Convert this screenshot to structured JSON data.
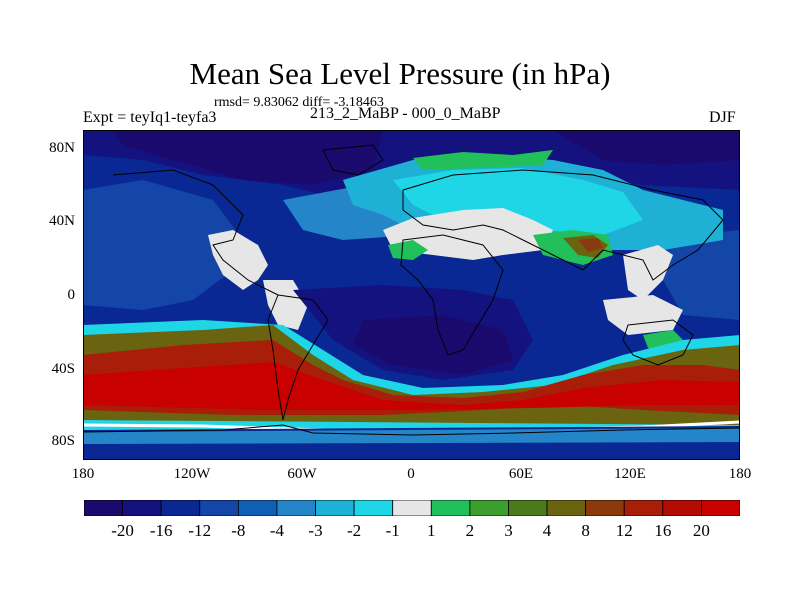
{
  "header": {
    "title": "Mean Sea Level Pressure (in hPa)",
    "stats": "rmsd= 9.83062  diff= -3.18463",
    "experiment": "Expt = teyIq1-teyfa3",
    "difference_name": "213_2_MaBP - 000_0_MaBP",
    "season": "DJF"
  },
  "axes": {
    "y_labels": [
      "80N",
      "40N",
      "0",
      "40S",
      "80S"
    ],
    "x_labels": [
      "180",
      "120W",
      "60W",
      "0",
      "60E",
      "120E",
      "180"
    ]
  },
  "colorbar": {
    "labels": [
      "-20",
      "-16",
      "-12",
      "-8",
      "-4",
      "-3",
      "-2",
      "-1",
      "1",
      "2",
      "3",
      "4",
      "8",
      "12",
      "16",
      "20"
    ],
    "colors": [
      "#1a0a6e",
      "#14127f",
      "#0a2894",
      "#1446a8",
      "#0f5fb5",
      "#2486c8",
      "#1fb0d6",
      "#1ed6e6",
      "#e6e6e6",
      "#22c05a",
      "#3c9e2c",
      "#4a7a1a",
      "#6a6410",
      "#8a3a0c",
      "#a81e08",
      "#b40c04",
      "#c80000"
    ]
  },
  "chart_data": {
    "type": "heatmap",
    "title": "Mean Sea Level Pressure (in hPa)",
    "variable": "Mean sea level pressure difference",
    "units": "hPa",
    "subtitle_left": "Expt = teyIq1-teyfa3",
    "subtitle_center": "213_2_MaBP - 000_0_MaBP",
    "subtitle_right": "DJF",
    "statistics": {
      "rmsd": 9.83062,
      "diff": -3.18463
    },
    "x_range": [
      -180,
      180
    ],
    "y_range": [
      -90,
      90
    ],
    "x_ticks": [
      "180",
      "120W",
      "60W",
      "0",
      "60E",
      "120E",
      "180"
    ],
    "y_ticks": [
      "80N",
      "40N",
      "0",
      "40S",
      "80S"
    ],
    "contour_levels": [
      -20,
      -16,
      -12,
      -8,
      -4,
      -3,
      -2,
      -1,
      1,
      2,
      3,
      4,
      8,
      12,
      16,
      20
    ]
  }
}
